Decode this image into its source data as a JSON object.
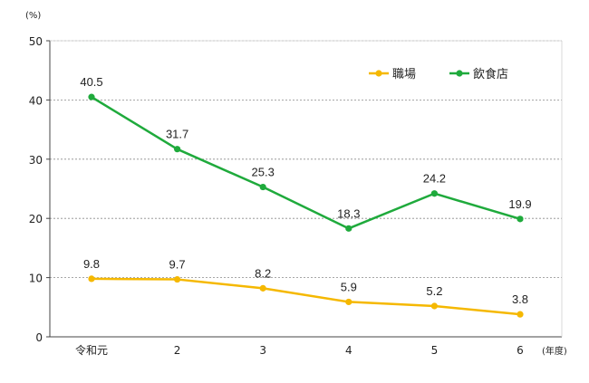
{
  "chart_data": {
    "type": "line",
    "y_unit": "(%)",
    "x_unit": "(年度)",
    "categories": [
      "令和元",
      "2",
      "3",
      "4",
      "5",
      "6"
    ],
    "ylim": [
      0,
      50
    ],
    "yticks": [
      0,
      10,
      20,
      30,
      40,
      50
    ],
    "grid": true,
    "legend_position": "top-right",
    "series": [
      {
        "name": "職場",
        "color": "#F5B800",
        "values": [
          9.8,
          9.7,
          8.2,
          5.9,
          5.2,
          3.8
        ],
        "labels": [
          "9.8",
          "9.7",
          "8.2",
          "5.9",
          "5.2",
          "3.8"
        ]
      },
      {
        "name": "飲食店",
        "color": "#1FAA3C",
        "values": [
          40.5,
          31.7,
          25.3,
          18.3,
          24.2,
          19.9
        ],
        "labels": [
          "40.5",
          "31.7",
          "25.3",
          "18.3",
          "24.2",
          "19.9"
        ]
      }
    ]
  }
}
